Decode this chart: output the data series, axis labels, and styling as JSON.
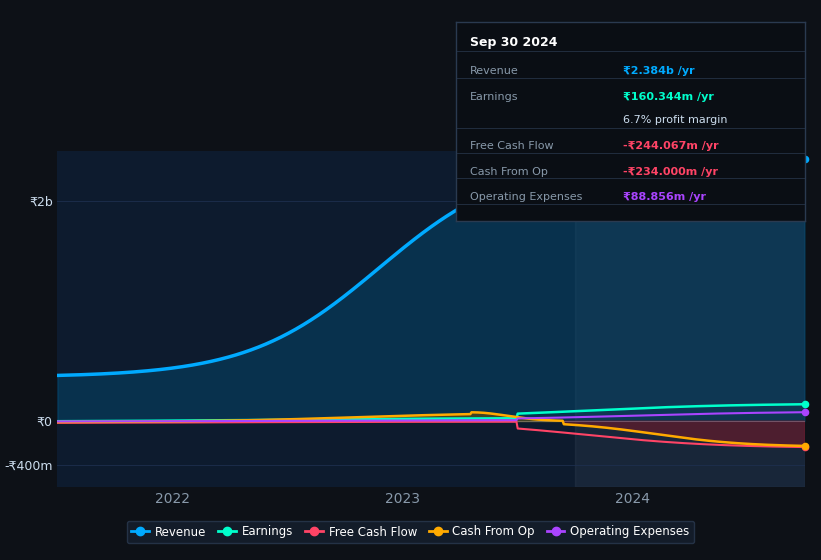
{
  "background_color": "#0d1117",
  "plot_bg_color": "#0d1b2e",
  "grid_color": "#1e3050",
  "ytick_labels": [
    "-₹400m",
    "₹0",
    "₹2b"
  ],
  "xlabel_color": "#8899aa",
  "ylabel_color": "#ccddee",
  "line_colors": {
    "revenue": "#00aaff",
    "earnings": "#00ffcc",
    "free_cash_flow": "#ff4466",
    "cash_from_op": "#ffaa00",
    "operating_expenses": "#aa44ff"
  },
  "fill_colors": {
    "revenue": "#005580",
    "cash_from_op_neg": "#6b1a2a",
    "cash_from_op_pos": "#7a5500"
  },
  "tooltip_bg": "#0a0e14",
  "tooltip_border": "#2a3a50",
  "tooltip_title": "Sep 30 2024",
  "tooltip_rows": [
    {
      "label": "Revenue",
      "value": "₹2.384b /yr",
      "value_color": "#00aaff",
      "bold_value": true
    },
    {
      "label": "Earnings",
      "value": "₹160.344m /yr",
      "value_color": "#00ffcc",
      "bold_value": true
    },
    {
      "label": "",
      "value": "6.7% profit margin",
      "value_color": "#ccddee",
      "bold_value": false
    },
    {
      "label": "Free Cash Flow",
      "value": "-₹244.067m /yr",
      "value_color": "#ff4466",
      "bold_value": true
    },
    {
      "label": "Cash From Op",
      "value": "-₹234.000m /yr",
      "value_color": "#ff4466",
      "bold_value": true
    },
    {
      "label": "Operating Expenses",
      "value": "₹88.856m /yr",
      "value_color": "#aa44ff",
      "bold_value": true
    }
  ],
  "legend_entries": [
    {
      "label": "Revenue",
      "color": "#00aaff"
    },
    {
      "label": "Earnings",
      "color": "#00ffcc"
    },
    {
      "label": "Free Cash Flow",
      "color": "#ff4466"
    },
    {
      "label": "Cash From Op",
      "color": "#ffaa00"
    },
    {
      "label": "Operating Expenses",
      "color": "#aa44ff"
    }
  ]
}
